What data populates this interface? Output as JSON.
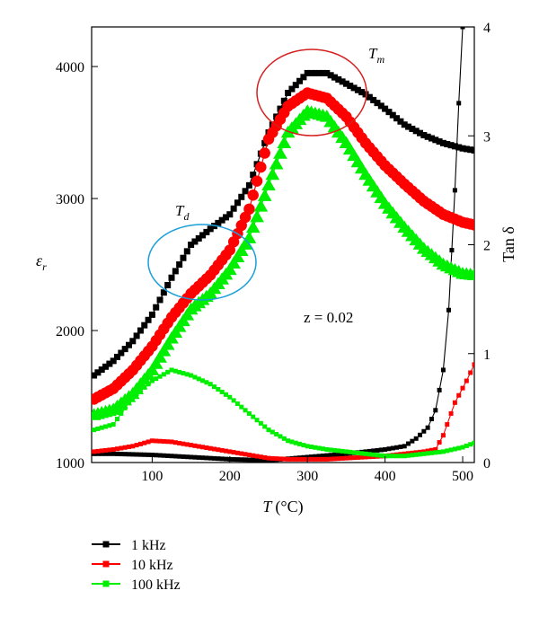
{
  "chart_data": {
    "type": "line",
    "xlabel_main": "T",
    "xlabel_unit": "(°C)",
    "ylabel_left": "ε",
    "ylabel_left_sub": "r",
    "ylabel_right": "Tan δ",
    "xlim": [
      22,
      515
    ],
    "ylim_left": [
      1000,
      4300
    ],
    "ylim_right": [
      0,
      4
    ],
    "x_ticks": [
      100,
      200,
      300,
      400,
      500
    ],
    "y_left_ticks": [
      1000,
      2000,
      3000,
      4000
    ],
    "y_right_ticks": [
      0,
      1,
      2,
      3,
      4
    ],
    "grid": false,
    "legend_position": "below plot, left",
    "annotations": {
      "td_main": "T",
      "td_sub": "d",
      "tm_main": "T",
      "tm_sub": "m",
      "z_label": "z = 0.02"
    },
    "series": [
      {
        "name": "1 kHz",
        "color": "#000000",
        "marker": "square",
        "permittivity": {
          "x": [
            25,
            50,
            75,
            100,
            125,
            150,
            175,
            200,
            225,
            250,
            275,
            300,
            325,
            350,
            375,
            400,
            425,
            450,
            475,
            500,
            515
          ],
          "y": [
            1660,
            1770,
            1920,
            2120,
            2400,
            2650,
            2770,
            2880,
            3100,
            3500,
            3800,
            3950,
            3950,
            3870,
            3790,
            3680,
            3560,
            3480,
            3420,
            3380,
            3365
          ]
        },
        "tan_delta": {
          "x": [
            25,
            50,
            100,
            150,
            200,
            250,
            300,
            350,
            400,
            425,
            440,
            455,
            465,
            475,
            482,
            490,
            495,
            500
          ],
          "y": [
            0.08,
            0.08,
            0.07,
            0.05,
            0.03,
            0.02,
            0.05,
            0.08,
            0.12,
            0.15,
            0.22,
            0.32,
            0.48,
            0.85,
            1.4,
            2.5,
            3.3,
            4.0
          ]
        }
      },
      {
        "name": "10 kHz",
        "color": "#ff0000",
        "marker": "circle",
        "permittivity": {
          "x": [
            25,
            50,
            75,
            100,
            125,
            150,
            175,
            200,
            225,
            250,
            275,
            300,
            325,
            350,
            375,
            400,
            425,
            450,
            475,
            500,
            515
          ],
          "y": [
            1480,
            1560,
            1700,
            1880,
            2100,
            2280,
            2420,
            2610,
            2920,
            3450,
            3700,
            3800,
            3760,
            3620,
            3420,
            3250,
            3110,
            2980,
            2880,
            2820,
            2800
          ]
        },
        "tan_delta": {
          "x": [
            25,
            50,
            75,
            100,
            125,
            150,
            175,
            200,
            225,
            250,
            275,
            300,
            325,
            350,
            375,
            400,
            425,
            450,
            465,
            475,
            490,
            505,
            515
          ],
          "y": [
            0.1,
            0.12,
            0.15,
            0.2,
            0.19,
            0.16,
            0.13,
            0.1,
            0.07,
            0.04,
            0.03,
            0.03,
            0.03,
            0.04,
            0.05,
            0.06,
            0.08,
            0.1,
            0.12,
            0.25,
            0.55,
            0.75,
            0.9
          ]
        }
      },
      {
        "name": "100 kHz",
        "color": "#00ee00",
        "marker": "triangle",
        "permittivity": {
          "x": [
            25,
            50,
            75,
            100,
            125,
            150,
            175,
            200,
            225,
            250,
            275,
            300,
            325,
            350,
            375,
            400,
            425,
            450,
            475,
            500,
            515
          ],
          "y": [
            1360,
            1400,
            1520,
            1700,
            1940,
            2160,
            2280,
            2460,
            2700,
            3100,
            3500,
            3660,
            3620,
            3420,
            3180,
            2960,
            2780,
            2620,
            2500,
            2430,
            2420
          ]
        },
        "tan_delta": {
          "x": [
            25,
            50,
            75,
            100,
            125,
            150,
            175,
            200,
            225,
            250,
            275,
            300,
            325,
            350,
            375,
            400,
            425,
            450,
            475,
            500,
            515
          ],
          "y": [
            0.3,
            0.35,
            0.6,
            0.75,
            0.85,
            0.8,
            0.72,
            0.6,
            0.45,
            0.3,
            0.2,
            0.15,
            0.12,
            0.1,
            0.08,
            0.06,
            0.06,
            0.08,
            0.1,
            0.14,
            0.18
          ]
        }
      }
    ]
  }
}
